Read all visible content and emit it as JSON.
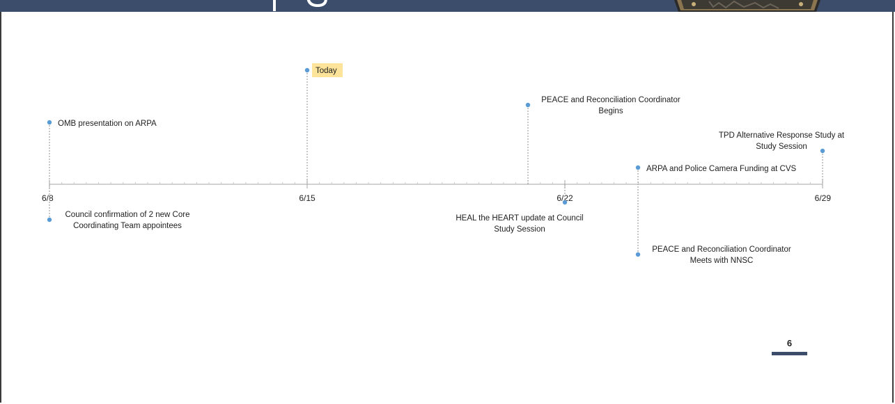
{
  "timeline": {
    "ticks": [
      {
        "label": "6/8",
        "day": 8
      },
      {
        "label": "6/15",
        "day": 15
      },
      {
        "label": "6/22",
        "day": 22
      },
      {
        "label": "6/29",
        "day": 29
      }
    ],
    "today": {
      "label": "Today",
      "highlight": "#fde49a"
    },
    "events": [
      {
        "lines": [
          "OMB presentation on ARPA"
        ],
        "day": 8
      },
      {
        "lines": [
          "Council confirmation of 2 new Core",
          "Coordinating Team appointees"
        ],
        "day": 8
      },
      {
        "lines": [
          "PEACE and Reconciliation Coordinator",
          "Begins"
        ],
        "day": 20
      },
      {
        "lines": [
          "HEAL the HEART update at Council",
          "Study Session"
        ],
        "day": 22
      },
      {
        "lines": [
          "ARPA and Police Camera Funding at CVS"
        ],
        "day": 24
      },
      {
        "lines": [
          "PEACE and Reconciliation Coordinator",
          "Meets with NNSC"
        ],
        "day": 24
      },
      {
        "lines": [
          "TPD Alternative Response Study at",
          "Study Session"
        ],
        "day": 29
      }
    ],
    "colors": {
      "marker": "#5b9bd5",
      "axis": "#a6a6a6",
      "leader": "#8c8c8c"
    }
  },
  "footer": {
    "page_number": "6"
  }
}
